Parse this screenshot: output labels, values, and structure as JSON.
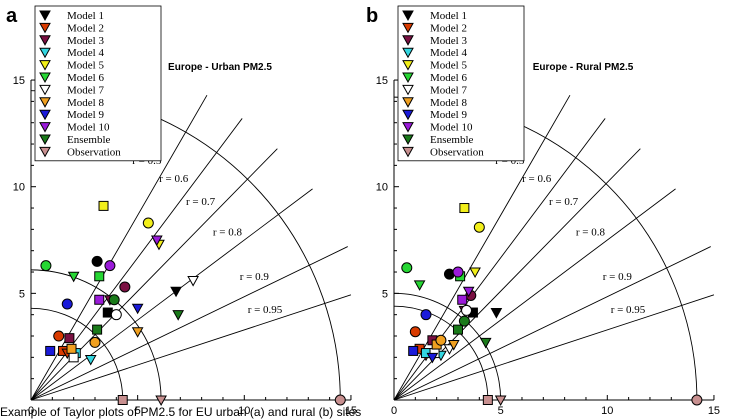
{
  "figure_caption_fragment": "Example of Taylor plots of PM2.5 for EU urban (a) and rural (b) sites",
  "legend_entries": [
    {
      "name": "Model 1",
      "marker": "tri-down",
      "color": "#000000"
    },
    {
      "name": "Model 2",
      "marker": "tri-down",
      "color": "#d93b00"
    },
    {
      "name": "Model 3",
      "marker": "tri-down",
      "color": "#7a1042"
    },
    {
      "name": "Model 4",
      "marker": "tri-down",
      "color": "#33d6e0"
    },
    {
      "name": "Model 5",
      "marker": "tri-down",
      "color": "#f2ef1a"
    },
    {
      "name": "Model 6",
      "marker": "tri-down",
      "color": "#26d633"
    },
    {
      "name": "Model 7",
      "marker": "tri-down",
      "color": "#ffffff"
    },
    {
      "name": "Model 8",
      "marker": "tri-down",
      "color": "#f0a020"
    },
    {
      "name": "Model 9",
      "marker": "tri-down",
      "color": "#1a1ad9"
    },
    {
      "name": "Model 10",
      "marker": "tri-down",
      "color": "#9a1ad9"
    },
    {
      "name": "Ensemble",
      "marker": "tri-down",
      "color": "#1a7a1a"
    },
    {
      "name": "Observation",
      "marker": "tri-down",
      "color": "#c89090"
    }
  ],
  "chart_data": [
    {
      "type": "scatter",
      "panel_letter": "a",
      "title": "Europe - Urban PM2.5",
      "xlim": [
        0,
        15
      ],
      "ylim": [
        0,
        15
      ],
      "x_ticks": [
        "0",
        "5",
        "10",
        "15"
      ],
      "y_ticks": [
        "0",
        "5",
        "10",
        "15"
      ],
      "grid": false,
      "legend_position": "top-left",
      "correlation_lines": [
        {
          "label": "r = 0.5",
          "r": 0.5
        },
        {
          "label": "r = 0.6",
          "r": 0.6
        },
        {
          "label": "r = 0.7",
          "r": 0.7
        },
        {
          "label": "r = 0.8",
          "r": 0.8
        },
        {
          "label": "r = 0.9",
          "r": 0.9
        },
        {
          "label": "r = 0.95",
          "r": 0.95
        }
      ],
      "std_arcs": [
        4.3,
        6.1,
        14.5
      ],
      "observation_points": [
        {
          "x": 4.3,
          "y": 0
        },
        {
          "x": 6.1,
          "y": 0
        },
        {
          "x": 14.5,
          "y": 0
        }
      ],
      "points": [
        {
          "model": "Model 1",
          "shape": "tri-down",
          "x": 6.8,
          "y": 5.1
        },
        {
          "model": "Model 1",
          "shape": "square",
          "x": 3.6,
          "y": 4.1
        },
        {
          "model": "Model 1",
          "shape": "circle",
          "x": 3.1,
          "y": 6.5
        },
        {
          "model": "Model 2",
          "shape": "square",
          "x": 1.5,
          "y": 2.3
        },
        {
          "model": "Model 2",
          "shape": "circle",
          "x": 1.3,
          "y": 3.0
        },
        {
          "model": "Model 2",
          "shape": "tri-down",
          "x": 1.7,
          "y": 2.2
        },
        {
          "model": "Model 3",
          "shape": "square",
          "x": 1.8,
          "y": 2.9
        },
        {
          "model": "Model 3",
          "shape": "circle",
          "x": 4.4,
          "y": 5.3
        },
        {
          "model": "Model 3",
          "shape": "tri-down",
          "x": 3.7,
          "y": 4.7
        },
        {
          "model": "Model 4",
          "shape": "tri-down",
          "x": 2.8,
          "y": 1.9
        },
        {
          "model": "Model 4",
          "shape": "square",
          "x": 2.1,
          "y": 2.2
        },
        {
          "model": "Model 5",
          "shape": "square",
          "x": 3.4,
          "y": 9.1
        },
        {
          "model": "Model 5",
          "shape": "circle",
          "x": 5.5,
          "y": 8.3
        },
        {
          "model": "Model 5",
          "shape": "tri-down",
          "x": 6.0,
          "y": 7.3
        },
        {
          "model": "Model 6",
          "shape": "circle",
          "x": 0.7,
          "y": 6.3
        },
        {
          "model": "Model 6",
          "shape": "tri-down",
          "x": 2.0,
          "y": 5.8
        },
        {
          "model": "Model 6",
          "shape": "square",
          "x": 3.2,
          "y": 5.8
        },
        {
          "model": "Model 7",
          "shape": "circle",
          "x": 4.0,
          "y": 4.0
        },
        {
          "model": "Model 7",
          "shape": "tri-down",
          "x": 7.6,
          "y": 5.6
        },
        {
          "model": "Model 7",
          "shape": "square",
          "x": 2.0,
          "y": 2.0
        },
        {
          "model": "Model 8",
          "shape": "square",
          "x": 1.9,
          "y": 2.4
        },
        {
          "model": "Model 8",
          "shape": "tri-down",
          "x": 5.0,
          "y": 3.2
        },
        {
          "model": "Model 8",
          "shape": "circle",
          "x": 3.0,
          "y": 2.7
        },
        {
          "model": "Model 9",
          "shape": "circle",
          "x": 1.7,
          "y": 4.5
        },
        {
          "model": "Model 9",
          "shape": "square",
          "x": 0.9,
          "y": 2.3
        },
        {
          "model": "Model 9",
          "shape": "tri-down",
          "x": 5.0,
          "y": 4.3
        },
        {
          "model": "Model 10",
          "shape": "square",
          "x": 3.2,
          "y": 4.7
        },
        {
          "model": "Model 10",
          "shape": "circle",
          "x": 3.7,
          "y": 6.3
        },
        {
          "model": "Model 10",
          "shape": "tri-down",
          "x": 5.9,
          "y": 7.5
        },
        {
          "model": "Ensemble",
          "shape": "square",
          "x": 3.1,
          "y": 3.3
        },
        {
          "model": "Ensemble",
          "shape": "tri-down",
          "x": 6.9,
          "y": 4.0
        },
        {
          "model": "Ensemble",
          "shape": "circle",
          "x": 3.9,
          "y": 4.7
        }
      ]
    },
    {
      "type": "scatter",
      "panel_letter": "b",
      "title": "Europe - Rural PM2.5",
      "xlim": [
        0,
        15
      ],
      "ylim": [
        0,
        15
      ],
      "x_ticks": [
        "0",
        "5",
        "10",
        "15"
      ],
      "y_ticks": [
        "0",
        "5",
        "10",
        "15"
      ],
      "grid": false,
      "legend_position": "top-left",
      "correlation_lines": [
        {
          "label": "r = 0.5",
          "r": 0.5
        },
        {
          "label": "r = 0.6",
          "r": 0.6
        },
        {
          "label": "r = 0.7",
          "r": 0.7
        },
        {
          "label": "r = 0.8",
          "r": 0.8
        },
        {
          "label": "r = 0.9",
          "r": 0.9
        },
        {
          "label": "r = 0.95",
          "r": 0.95
        }
      ],
      "std_arcs": [
        4.4,
        5.0,
        14.2
      ],
      "observation_points": [
        {
          "x": 4.4,
          "y": 0
        },
        {
          "x": 5.0,
          "y": 0
        },
        {
          "x": 14.2,
          "y": 0
        }
      ],
      "points": [
        {
          "model": "Model 1",
          "shape": "tri-down",
          "x": 4.8,
          "y": 4.1
        },
        {
          "model": "Model 1",
          "shape": "square",
          "x": 3.7,
          "y": 4.1
        },
        {
          "model": "Model 1",
          "shape": "circle",
          "x": 2.6,
          "y": 5.9
        },
        {
          "model": "Model 2",
          "shape": "square",
          "x": 1.2,
          "y": 2.4
        },
        {
          "model": "Model 2",
          "shape": "circle",
          "x": 1.0,
          "y": 3.2
        },
        {
          "model": "Model 2",
          "shape": "tri-down",
          "x": 1.5,
          "y": 2.1
        },
        {
          "model": "Model 3",
          "shape": "square",
          "x": 1.8,
          "y": 2.8
        },
        {
          "model": "Model 3",
          "shape": "circle",
          "x": 3.6,
          "y": 4.9
        },
        {
          "model": "Model 3",
          "shape": "tri-down",
          "x": 3.3,
          "y": 4.2
        },
        {
          "model": "Model 4",
          "shape": "tri-down",
          "x": 2.2,
          "y": 2.1
        },
        {
          "model": "Model 4",
          "shape": "square",
          "x": 1.5,
          "y": 2.2
        },
        {
          "model": "Model 5",
          "shape": "square",
          "x": 3.3,
          "y": 9.0
        },
        {
          "model": "Model 5",
          "shape": "circle",
          "x": 4.0,
          "y": 8.1
        },
        {
          "model": "Model 5",
          "shape": "tri-down",
          "x": 3.8,
          "y": 6.0
        },
        {
          "model": "Model 6",
          "shape": "circle",
          "x": 0.6,
          "y": 6.2
        },
        {
          "model": "Model 6",
          "shape": "tri-down",
          "x": 1.2,
          "y": 5.4
        },
        {
          "model": "Model 6",
          "shape": "square",
          "x": 3.1,
          "y": 5.8
        },
        {
          "model": "Model 7",
          "shape": "circle",
          "x": 3.4,
          "y": 4.2
        },
        {
          "model": "Model 7",
          "shape": "tri-down",
          "x": 2.6,
          "y": 2.4
        },
        {
          "model": "Model 7",
          "shape": "square",
          "x": 1.9,
          "y": 2.2
        },
        {
          "model": "Model 8",
          "shape": "square",
          "x": 2.0,
          "y": 2.6
        },
        {
          "model": "Model 8",
          "shape": "tri-down",
          "x": 2.8,
          "y": 2.6
        },
        {
          "model": "Model 8",
          "shape": "circle",
          "x": 2.2,
          "y": 2.8
        },
        {
          "model": "Model 9",
          "shape": "circle",
          "x": 1.5,
          "y": 4.0
        },
        {
          "model": "Model 9",
          "shape": "square",
          "x": 0.9,
          "y": 2.3
        },
        {
          "model": "Model 9",
          "shape": "tri-down",
          "x": 1.8,
          "y": 2.0
        },
        {
          "model": "Model 10",
          "shape": "square",
          "x": 3.2,
          "y": 4.7
        },
        {
          "model": "Model 10",
          "shape": "circle",
          "x": 3.0,
          "y": 6.0
        },
        {
          "model": "Model 10",
          "shape": "tri-down",
          "x": 3.5,
          "y": 5.1
        },
        {
          "model": "Ensemble",
          "shape": "square",
          "x": 3.0,
          "y": 3.3
        },
        {
          "model": "Ensemble",
          "shape": "tri-down",
          "x": 4.3,
          "y": 2.7
        },
        {
          "model": "Ensemble",
          "shape": "circle",
          "x": 3.3,
          "y": 3.7
        }
      ]
    }
  ]
}
